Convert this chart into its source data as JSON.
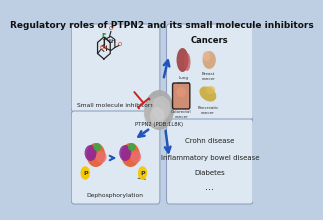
{
  "title": "Regulatory roles of PTPN2 and its small molecule inhibitors",
  "bg_color": "#bfcfe3",
  "panel_bg": "#dde8f2",
  "title_fontsize": 6.8,
  "cancers_title": "Cancers",
  "other_diseases": [
    "Crohn disease",
    "Inflammatory bowel disease",
    "Diabetes",
    "..."
  ],
  "ptpn2_label": "PTPN2 (PDB:1L8K)",
  "small_mol_label": "Small molecule inhibitors",
  "dephos_label": "Dephosphorylation",
  "arrow_blue": "#2255bb",
  "arrow_red": "#cc2222",
  "edge_color": "#8899bb"
}
